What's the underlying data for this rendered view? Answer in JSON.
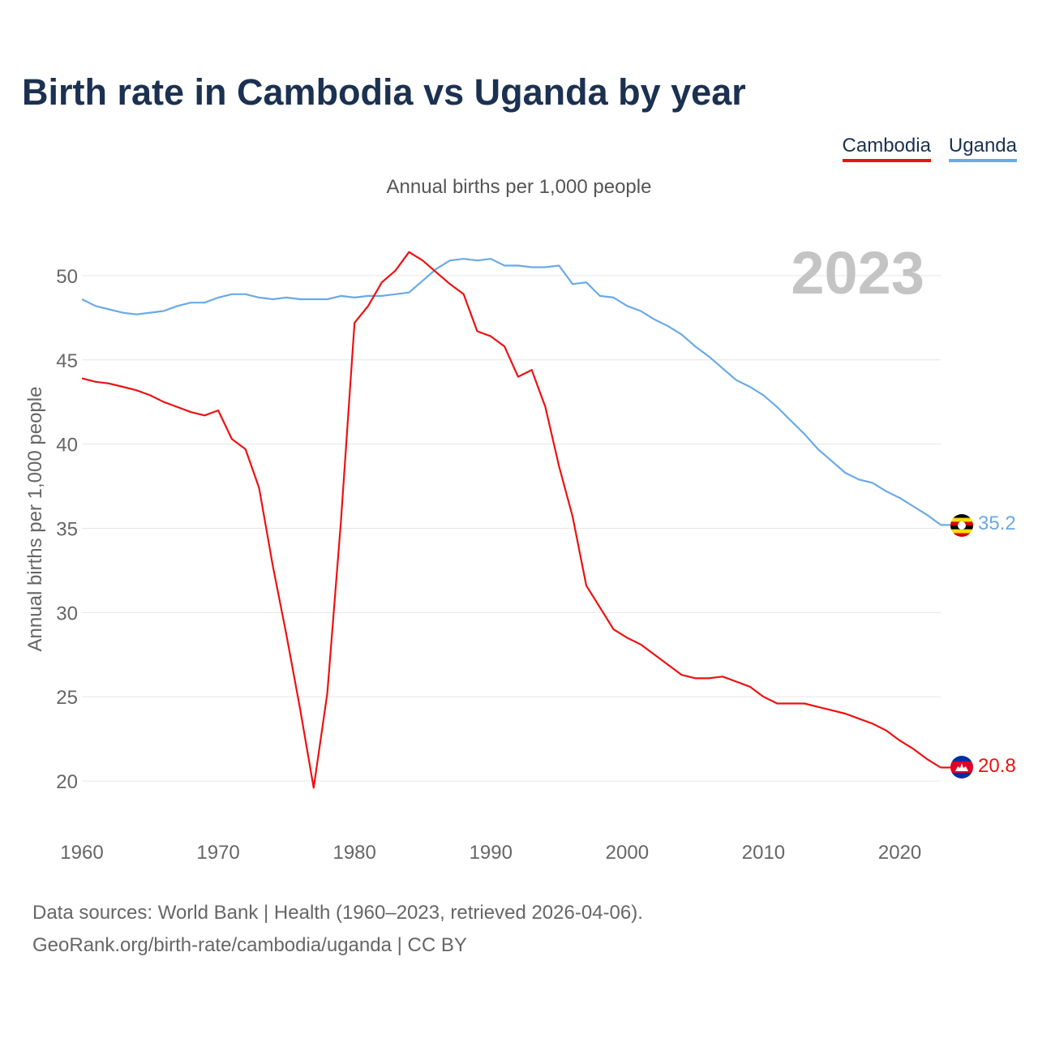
{
  "chart_data": {
    "type": "line",
    "title": "Birth rate in Cambodia vs Uganda by year",
    "subtitle": "Annual births per 1,000 people",
    "ylabel": "Annual births per 1,000 people",
    "xlabel": "",
    "xlim": [
      1960,
      2023
    ],
    "ylim": [
      17.5,
      52.5
    ],
    "x_ticks": [
      1960,
      1970,
      1980,
      1990,
      2000,
      2010,
      2020
    ],
    "y_ticks": [
      20,
      25,
      30,
      35,
      40,
      45,
      50
    ],
    "year_label": "2023",
    "grid": true,
    "x": [
      1960,
      1961,
      1962,
      1963,
      1964,
      1965,
      1966,
      1967,
      1968,
      1969,
      1970,
      1971,
      1972,
      1973,
      1974,
      1975,
      1976,
      1977,
      1978,
      1979,
      1980,
      1981,
      1982,
      1983,
      1984,
      1985,
      1986,
      1987,
      1988,
      1989,
      1990,
      1991,
      1992,
      1993,
      1994,
      1995,
      1996,
      1997,
      1998,
      1999,
      2000,
      2001,
      2002,
      2003,
      2004,
      2005,
      2006,
      2007,
      2008,
      2009,
      2010,
      2011,
      2012,
      2013,
      2014,
      2015,
      2016,
      2017,
      2018,
      2019,
      2020,
      2021,
      2022,
      2023
    ],
    "series": [
      {
        "name": "Cambodia",
        "color": "#ee1111",
        "end_label": "20.8",
        "values": [
          43.9,
          43.7,
          43.6,
          43.4,
          43.2,
          42.9,
          42.5,
          42.2,
          41.9,
          41.7,
          42.0,
          40.3,
          39.7,
          37.4,
          32.8,
          28.7,
          24.3,
          19.6,
          25.2,
          35.4,
          47.2,
          48.2,
          49.6,
          50.3,
          51.4,
          50.9,
          50.2,
          49.5,
          48.9,
          46.7,
          46.4,
          45.8,
          44.0,
          44.4,
          42.2,
          38.7,
          35.7,
          31.6,
          30.3,
          29.0,
          28.5,
          28.1,
          27.5,
          26.9,
          26.3,
          26.1,
          26.1,
          26.2,
          25.9,
          25.6,
          25.0,
          24.6,
          24.6,
          24.6,
          24.4,
          24.2,
          24.0,
          23.7,
          23.4,
          23.0,
          22.4,
          21.9,
          21.3,
          20.8
        ]
      },
      {
        "name": "Uganda",
        "color": "#6aaae6",
        "end_label": "35.2",
        "values": [
          48.6,
          48.2,
          48.0,
          47.8,
          47.7,
          47.8,
          47.9,
          48.2,
          48.4,
          48.4,
          48.7,
          48.9,
          48.9,
          48.7,
          48.6,
          48.7,
          48.6,
          48.6,
          48.6,
          48.8,
          48.7,
          48.8,
          48.8,
          48.9,
          49.0,
          49.7,
          50.4,
          50.9,
          51.0,
          50.9,
          51.0,
          50.6,
          50.6,
          50.5,
          50.5,
          50.6,
          49.5,
          49.6,
          48.8,
          48.7,
          48.2,
          47.9,
          47.4,
          47.0,
          46.5,
          45.8,
          45.2,
          44.5,
          43.8,
          43.4,
          42.9,
          42.2,
          41.4,
          40.6,
          39.7,
          39.0,
          38.3,
          37.9,
          37.7,
          37.2,
          36.8,
          36.3,
          35.8,
          35.2
        ]
      }
    ]
  },
  "legend": {
    "cambodia": "Cambodia",
    "uganda": "Uganda"
  },
  "footer": {
    "sources": "Data sources: World Bank | Health (1960–2023, retrieved 2026-04-06).",
    "credit": "GeoRank.org/birth-rate/cambodia/uganda | CC BY"
  }
}
